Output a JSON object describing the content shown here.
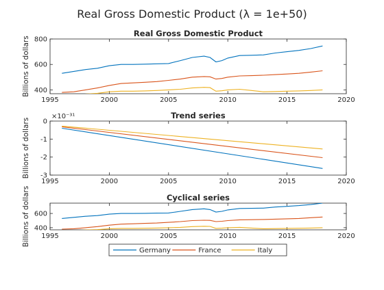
{
  "figure_title": "Real Gross Domestic Product (λ = 1e+50)",
  "legend": {
    "placement": "bottom-center",
    "entries": [
      {
        "name": "Germany",
        "color": "#0072BD"
      },
      {
        "name": "France",
        "color": "#D95319"
      },
      {
        "name": "Italy",
        "color": "#EDB120"
      }
    ]
  },
  "chart_data": [
    {
      "type": "line",
      "title": "Real Gross Domestic Product",
      "xlabel": "",
      "ylabel": "Billions of dollars",
      "xlim": [
        1995,
        2020
      ],
      "ylim": [
        370,
        800
      ],
      "xticks": [
        1995,
        2000,
        2005,
        2010,
        2015,
        2020
      ],
      "yticks": [
        400,
        600,
        800
      ],
      "exponent_label": "",
      "grid": false,
      "series": [
        {
          "name": "Germany",
          "x": [
            1996,
            1997,
            1998,
            1999,
            2000,
            2001,
            2002,
            2003,
            2004,
            2005,
            2006,
            2007,
            2008,
            2008.5,
            2009,
            2009.5,
            2010,
            2011,
            2012,
            2013,
            2014,
            2015,
            2016,
            2017,
            2018
          ],
          "y": [
            530,
            545,
            560,
            570,
            590,
            600,
            600,
            602,
            605,
            607,
            630,
            655,
            665,
            655,
            620,
            630,
            650,
            670,
            672,
            675,
            690,
            700,
            710,
            725,
            745
          ]
        },
        {
          "name": "France",
          "x": [
            1996,
            1997,
            1998,
            1999,
            2000,
            2001,
            2002,
            2003,
            2004,
            2005,
            2006,
            2007,
            2008,
            2008.5,
            2009,
            2009.5,
            2010,
            2011,
            2012,
            2013,
            2014,
            2015,
            2016,
            2017,
            2018
          ],
          "y": [
            380,
            385,
            400,
            415,
            435,
            450,
            455,
            460,
            465,
            475,
            485,
            500,
            505,
            503,
            485,
            490,
            500,
            510,
            512,
            515,
            520,
            525,
            530,
            540,
            550
          ]
        },
        {
          "name": "Italy",
          "x": [
            1996,
            1997,
            1998,
            1999,
            2000,
            2001,
            2002,
            2003,
            2004,
            2005,
            2006,
            2007,
            2008,
            2008.5,
            2009,
            2009.5,
            2010,
            2011,
            2012,
            2013,
            2014,
            2015,
            2016,
            2017,
            2018
          ],
          "y": [
            355,
            360,
            368,
            373,
            385,
            390,
            390,
            392,
            395,
            400,
            405,
            415,
            420,
            418,
            390,
            393,
            400,
            405,
            395,
            385,
            387,
            390,
            392,
            395,
            400
          ]
        }
      ]
    },
    {
      "type": "line",
      "title": "Trend series",
      "xlabel": "",
      "ylabel": "Billions of dollars",
      "xlim": [
        1995,
        2020
      ],
      "ylim": [
        -3,
        0
      ],
      "xticks": [
        1995,
        2000,
        2005,
        2010,
        2015,
        2020
      ],
      "yticks": [
        -3,
        -2,
        -1,
        0
      ],
      "exponent_label": "×10⁻³¹",
      "grid": false,
      "series": [
        {
          "name": "Germany",
          "x": [
            1996,
            2018
          ],
          "y": [
            -0.4,
            -2.63
          ]
        },
        {
          "name": "France",
          "x": [
            1996,
            2018
          ],
          "y": [
            -0.32,
            -2.03
          ]
        },
        {
          "name": "Italy",
          "x": [
            1996,
            2018
          ],
          "y": [
            -0.28,
            -1.55
          ]
        }
      ]
    },
    {
      "type": "line",
      "title": "Cyclical series",
      "xlabel": "",
      "ylabel": "Billions of dollars",
      "xlim": [
        1995,
        2020
      ],
      "ylim": [
        370,
        745
      ],
      "xticks": [
        1995,
        2000,
        2005,
        2010,
        2015,
        2020
      ],
      "yticks": [
        400,
        600
      ],
      "exponent_label": "",
      "grid": false,
      "series": [
        {
          "name": "Germany",
          "x": [
            1996,
            1997,
            1998,
            1999,
            2000,
            2001,
            2002,
            2003,
            2004,
            2005,
            2006,
            2007,
            2008,
            2008.5,
            2009,
            2009.5,
            2010,
            2011,
            2012,
            2013,
            2014,
            2015,
            2016,
            2017,
            2018
          ],
          "y": [
            530,
            545,
            560,
            570,
            590,
            600,
            600,
            602,
            605,
            607,
            630,
            655,
            665,
            655,
            620,
            630,
            650,
            670,
            672,
            675,
            690,
            700,
            710,
            725,
            745
          ]
        },
        {
          "name": "France",
          "x": [
            1996,
            1997,
            1998,
            1999,
            2000,
            2001,
            2002,
            2003,
            2004,
            2005,
            2006,
            2007,
            2008,
            2008.5,
            2009,
            2009.5,
            2010,
            2011,
            2012,
            2013,
            2014,
            2015,
            2016,
            2017,
            2018
          ],
          "y": [
            380,
            385,
            400,
            415,
            435,
            450,
            455,
            460,
            465,
            475,
            485,
            500,
            505,
            503,
            485,
            490,
            500,
            510,
            512,
            515,
            520,
            525,
            530,
            540,
            550
          ]
        },
        {
          "name": "Italy",
          "x": [
            1996,
            1997,
            1998,
            1999,
            2000,
            2001,
            2002,
            2003,
            2004,
            2005,
            2006,
            2007,
            2008,
            2008.5,
            2009,
            2009.5,
            2010,
            2011,
            2012,
            2013,
            2014,
            2015,
            2016,
            2017,
            2018
          ],
          "y": [
            355,
            360,
            368,
            373,
            385,
            390,
            390,
            392,
            395,
            400,
            405,
            415,
            420,
            418,
            390,
            393,
            400,
            405,
            395,
            385,
            387,
            390,
            392,
            395,
            400
          ]
        }
      ]
    }
  ]
}
